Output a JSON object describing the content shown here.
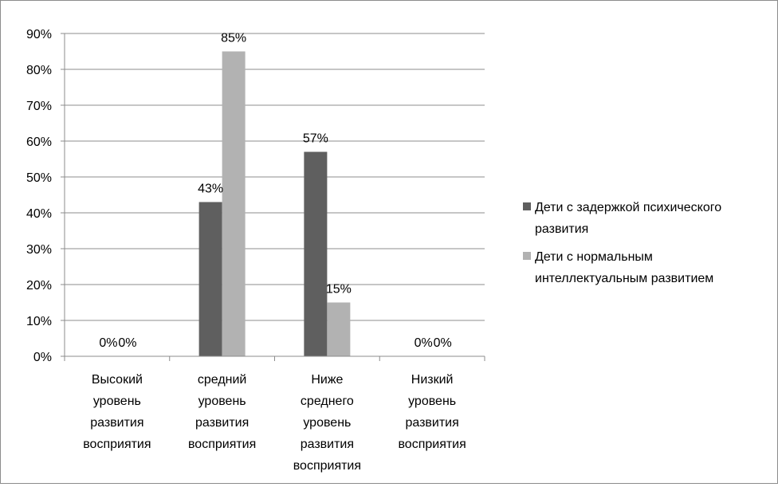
{
  "chart_data": {
    "type": "bar",
    "title": "",
    "xlabel": "",
    "ylabel": "",
    "ylim": [
      0,
      90
    ],
    "y_tick_step": 10,
    "y_tick_format": "percent",
    "grid": true,
    "legend_position": "right",
    "categories": [
      [
        "Высокий",
        "уровень",
        "развития",
        "восприятия"
      ],
      [
        "средний",
        "уровень",
        "развития",
        "восприятия"
      ],
      [
        "Ниже",
        "среднего",
        "уровень",
        "развития",
        "восприятия"
      ],
      [
        "Низкий",
        "уровень",
        "развития",
        "восприятия"
      ]
    ],
    "series": [
      {
        "name": "Дети с задержкой психического развития",
        "legend_lines": [
          "Дети с задержкой психического",
          "развития"
        ],
        "color": "#5f5f5f",
        "values": [
          0,
          43,
          57,
          0
        ],
        "data_labels": [
          "0%",
          "43%",
          "57%",
          "0%"
        ]
      },
      {
        "name": "Дети с нормальным интеллектуальным развитием",
        "legend_lines": [
          "Дети с нормальным",
          "интеллектуальным развитием"
        ],
        "color": "#b2b2b2",
        "values": [
          0,
          85,
          15,
          0
        ],
        "data_labels": [
          "0%",
          "85%",
          "15%",
          "0%"
        ]
      }
    ]
  }
}
